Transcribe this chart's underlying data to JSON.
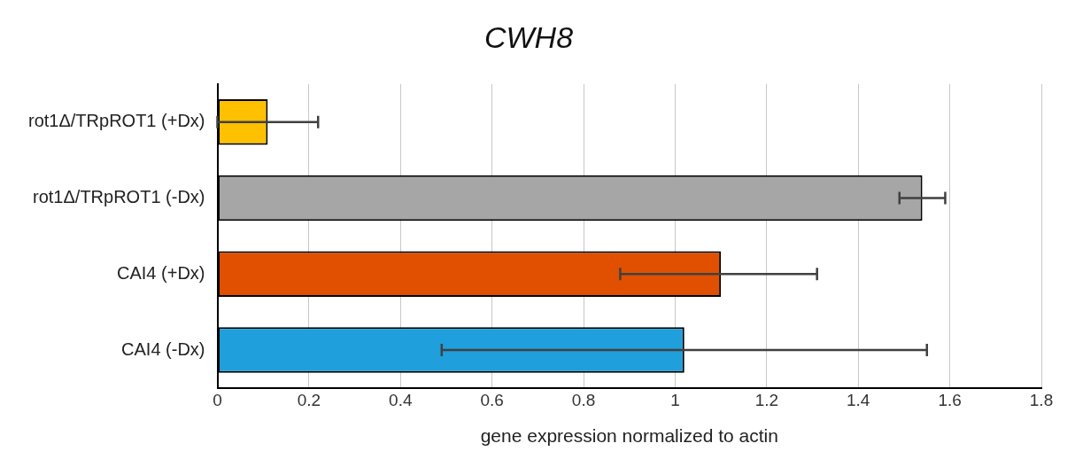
{
  "chart_data": {
    "type": "bar",
    "title": "CWH8",
    "orientation": "horizontal",
    "categories": [
      "rot1Δ/TRpROT1 (+Dx)",
      "rot1Δ/TRpROT1 (-Dx)",
      "CAI4 (+Dx)",
      "CAI4 (-Dx)"
    ],
    "values": [
      0.11,
      1.54,
      1.1,
      1.02
    ],
    "colors": [
      "#ffc000",
      "#a6a6a6",
      "#e05000",
      "#1f9fdc"
    ],
    "errors": [
      [
        0,
        0.22
      ],
      [
        1.49,
        1.59
      ],
      [
        0.88,
        1.31
      ],
      [
        0.49,
        1.55
      ]
    ],
    "xlabel": "gene expression normalized to actin",
    "xlim": [
      0,
      1.8
    ],
    "xticks": [
      0,
      0.2,
      0.4,
      0.6,
      0.8,
      1,
      1.2,
      1.4,
      1.6,
      1.8
    ],
    "grid": "x",
    "legend": false
  }
}
